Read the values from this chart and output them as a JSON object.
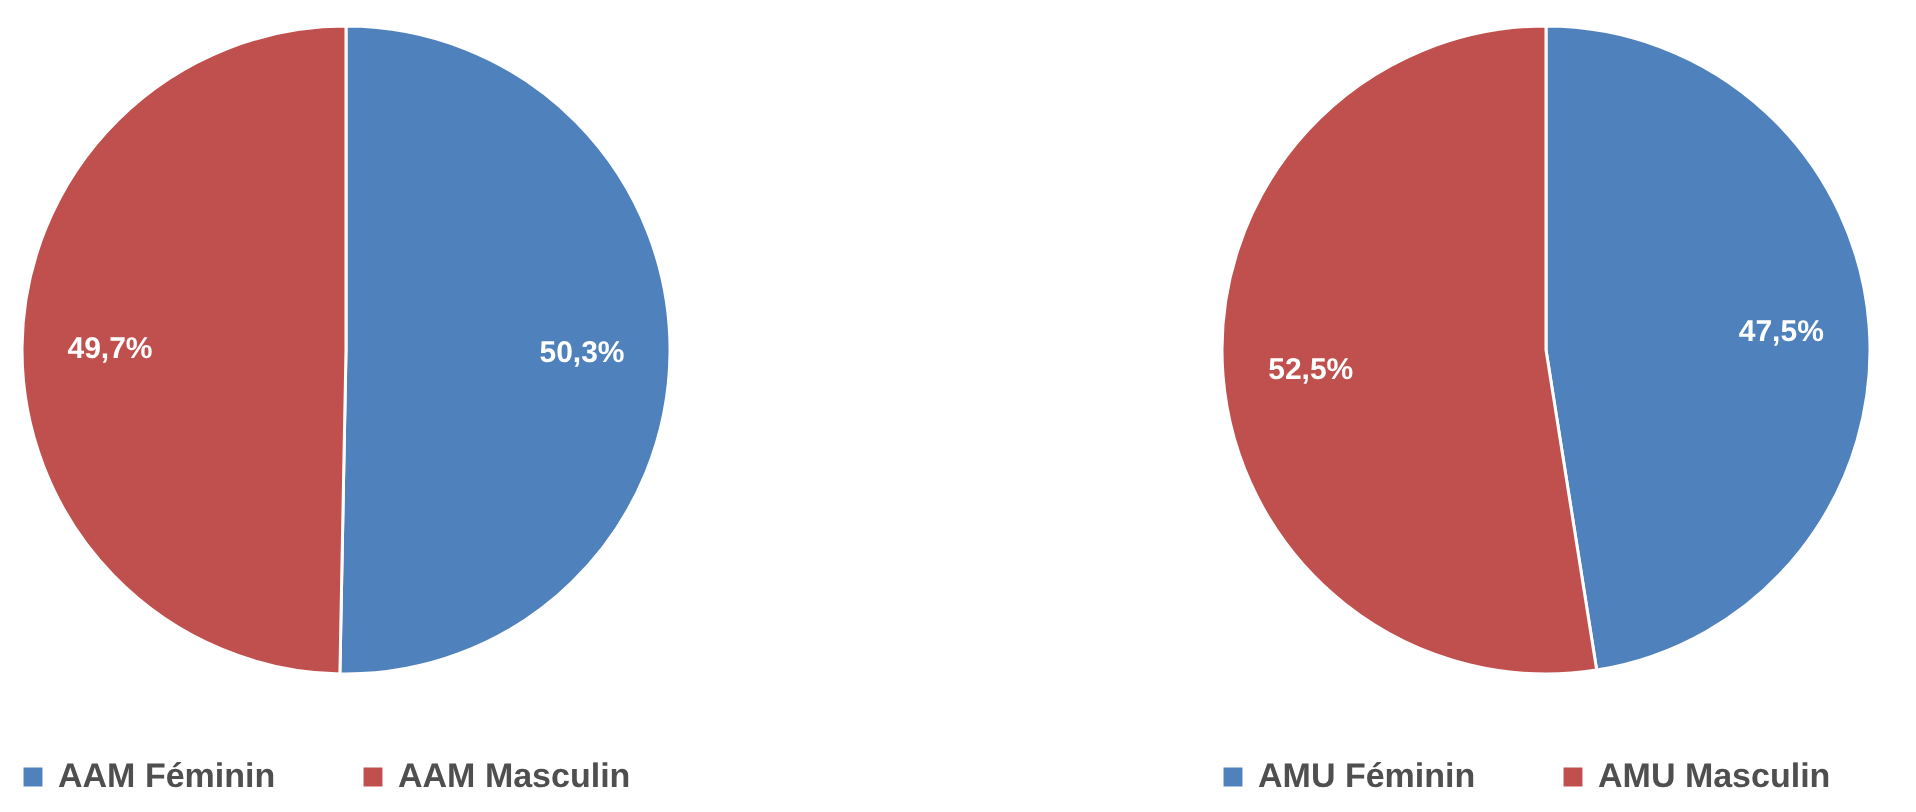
{
  "chart_data": [
    {
      "type": "pie",
      "categories": [
        "AAM Féminin",
        "AAM Masculin"
      ],
      "values": [
        50.3,
        49.7
      ],
      "colors": [
        "#4f81bd",
        "#c0504d"
      ],
      "value_labels": [
        "50,3%",
        "49,7%"
      ],
      "legend": "bottom"
    },
    {
      "type": "pie",
      "categories": [
        "AMU Féminin",
        "AMU Masculin"
      ],
      "values": [
        47.5,
        52.5
      ],
      "colors": [
        "#4f81bd",
        "#c0504d"
      ],
      "value_labels": [
        "47,5%",
        "52,5%"
      ],
      "legend": "bottom"
    }
  ]
}
